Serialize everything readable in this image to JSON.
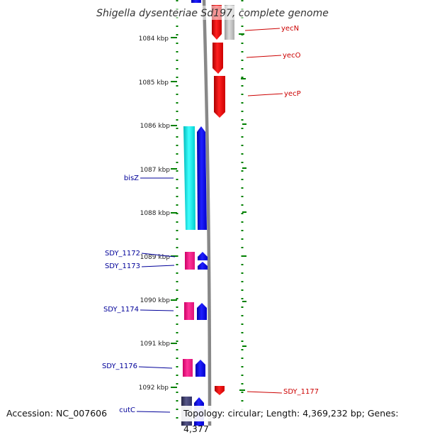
{
  "title": "Shigella dysenteriae Sd197, complete genome",
  "footer": {
    "accession": "Accession: NC_007606",
    "topology": "Topology: circular; Length: 4,369,232 bp; Genes: 4,377"
  },
  "ticks": [
    "1084 kbp",
    "1085 kbp",
    "1086 kbp",
    "1087 kbp",
    "1088 kbp",
    "1089 kbp",
    "1090 kbp",
    "1091 kbp",
    "1092 kbp"
  ],
  "genes_right": [
    "yecN",
    "yecO",
    "yecP",
    "SDY_1177"
  ],
  "genes_left": [
    "bisZ",
    "SDY_1172",
    "SDY_1173",
    "SDY_1174",
    "SDY_1176",
    "cutC"
  ],
  "colors": {
    "forward_red": "#ff0000",
    "blue": "#0000ff",
    "cyan": "#00ffff",
    "magenta": "#ff1493",
    "grey": "#bbbbbb",
    "pink": "#ffaaaa",
    "navy": "#333366",
    "tick_green": "#008000",
    "backbone": "#888888"
  }
}
